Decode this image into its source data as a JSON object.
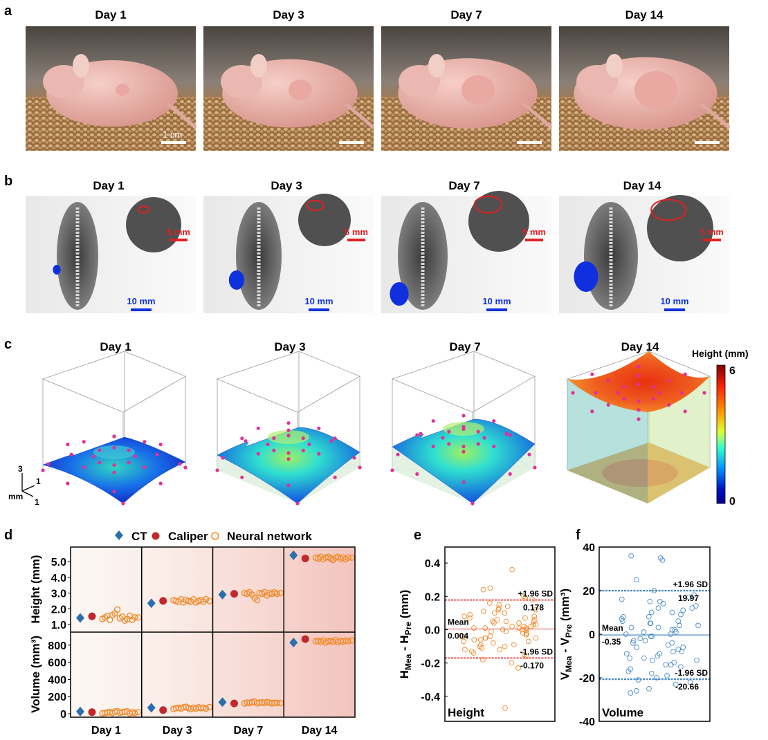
{
  "panel_labels": {
    "a": "a",
    "b": "b",
    "c": "c",
    "d": "d",
    "e": "e",
    "f": "f"
  },
  "days": [
    "Day 1",
    "Day 3",
    "Day 7",
    "Day 14"
  ],
  "panel_a": {
    "scale_bar_label": "1 cm"
  },
  "panel_b": {
    "scale_small_label": "5 mm",
    "scale_large_label": "10 mm",
    "colors": {
      "tumor_outline": "#e02020",
      "tumor_fill": "#1030e0"
    }
  },
  "panel_c": {
    "colorbar_title": "Height (mm)",
    "colorbar_max": "6",
    "colorbar_min": "0",
    "axis_labels": {
      "z": "3",
      "x": "1",
      "y": "1",
      "unit": "mm"
    },
    "colormap": [
      "#7f0000",
      "#ff2000",
      "#ffa000",
      "#e0ff30",
      "#30ffd0",
      "#0090ff",
      "#0010c0",
      "#00008f"
    ],
    "marker_color": "#e0309a"
  },
  "chart_data": [
    {
      "panel": "d",
      "type": "scatter",
      "legend": [
        "CT",
        "Caliper",
        "Neural network"
      ],
      "legend_placement": "top",
      "colors": {
        "CT": "#2a6fad",
        "Caliper": "#c0282c",
        "Neural network": "#f08a2a"
      },
      "categories": [
        "Day 1",
        "Day 3",
        "Day 7",
        "Day 14"
      ],
      "height": {
        "ylabel": "Height (mm)",
        "yticks": [
          "1.0",
          "2.0",
          "3.0",
          "4.0",
          "5.0"
        ],
        "ylim": [
          0.5,
          5.9
        ],
        "CT": [
          1.42,
          2.35,
          2.9,
          5.4
        ],
        "Caliper": [
          1.52,
          2.5,
          2.95,
          5.2
        ],
        "Neural network": [
          [
            1.35,
            1.45,
            1.55,
            1.3,
            1.6,
            1.7,
            1.95,
            1.4,
            1.5,
            1.25,
            1.35,
            1.55,
            1.3,
            1.45,
            1.45
          ],
          [
            2.55,
            2.5,
            2.45,
            2.6,
            2.4,
            2.55,
            2.5,
            2.45,
            2.6,
            2.4,
            2.5,
            2.55,
            2.45,
            2.6,
            2.5
          ],
          [
            3.0,
            2.95,
            3.05,
            2.9,
            2.7,
            2.55,
            3.0,
            2.95,
            3.05,
            2.85,
            3.0,
            2.95,
            3.05,
            2.95,
            3.0
          ],
          [
            5.25,
            5.2,
            5.3,
            5.15,
            5.25,
            5.3,
            5.2,
            5.1,
            5.25,
            5.3,
            5.2,
            5.25,
            5.15,
            5.25,
            5.25
          ]
        ]
      },
      "volume": {
        "ylabel": "Volume (mm³)",
        "yticks": [
          "0",
          "200",
          "400",
          "600",
          "800"
        ],
        "ylim": [
          -40,
          950
        ],
        "CT": [
          25,
          70,
          135,
          830
        ],
        "Caliper": [
          18,
          42,
          120,
          870
        ],
        "Neural network": [
          [
            5,
            10,
            15,
            20,
            8,
            25,
            30,
            12,
            18,
            22,
            28,
            5,
            15,
            10,
            18
          ],
          [
            55,
            65,
            70,
            60,
            75,
            80,
            65,
            55,
            70,
            60,
            75,
            65,
            70,
            60,
            78
          ],
          [
            120,
            130,
            125,
            135,
            140,
            120,
            128,
            132,
            125,
            138,
            130,
            122,
            128,
            125,
            125
          ],
          [
            845,
            850,
            840,
            855,
            830,
            845,
            850,
            840,
            860,
            835,
            848,
            842,
            852,
            845,
            855
          ]
        ]
      }
    },
    {
      "panel": "e",
      "type": "scatter",
      "title": "Height",
      "ylabel": "H_Mea - H_Pre (mm)",
      "yticks": [
        "0.4",
        "0.2",
        "0.0",
        "-0.2",
        "-0.4"
      ],
      "ylim": [
        -0.55,
        0.48
      ],
      "color": "#f08a2a",
      "lines": [
        {
          "label": "+1.96 SD",
          "value_label": "0.178",
          "value": 0.178
        },
        {
          "label": "Mean",
          "value_label": "0.004",
          "value": 0.004
        },
        {
          "label": "-1.96 SD",
          "value_label": "-0.170",
          "value": -0.17
        }
      ],
      "line_color": "#f07070",
      "differences": [
        0.36,
        -0.47,
        0.25,
        0.24,
        -0.23,
        -0.2,
        0.2,
        0.19,
        0.18,
        0.15,
        0.13,
        0.12,
        0.1,
        0.1,
        0.08,
        0.07,
        0.06,
        0.05,
        0.05,
        0.04,
        0.03,
        0.02,
        0.02,
        0.01,
        0.01,
        0.0,
        0.0,
        -0.01,
        -0.02,
        -0.02,
        -0.03,
        -0.04,
        -0.05,
        -0.05,
        -0.06,
        -0.07,
        -0.08,
        -0.09,
        -0.1,
        -0.11,
        -0.12,
        -0.13,
        -0.15,
        -0.16,
        -0.18,
        0.09,
        -0.03,
        0.04,
        0.11,
        -0.07,
        0.14,
        -0.12,
        0.01,
        0.06,
        -0.09,
        0.16,
        -0.14,
        0.03,
        -0.05,
        0.08,
        0.0,
        -0.01,
        0.12,
        -0.1,
        0.07,
        0.02,
        -0.04,
        0.05,
        -0.06,
        0.01
      ]
    },
    {
      "panel": "f",
      "type": "scatter",
      "title": "Volume",
      "ylabel": "V_Mea - V_Pre (mm³)",
      "yticks": [
        "40",
        "20",
        "0",
        "-20",
        "-40"
      ],
      "ylim": [
        -40,
        40
      ],
      "color": "#4a8cc8",
      "lines": [
        {
          "label": "+1.96 SD",
          "value_label": "19.97",
          "value": 19.97
        },
        {
          "label": "Mean",
          "value_label": "-0.35",
          "value": -0.35
        },
        {
          "label": "-1.96 SD",
          "value_label": "-20.66",
          "value": -20.66
        }
      ],
      "line_color": "#4a8cc8",
      "differences": [
        36,
        35,
        34,
        25,
        20,
        18,
        17,
        16,
        15,
        14,
        12,
        11,
        10,
        9,
        8,
        7,
        6,
        5,
        4,
        3,
        2,
        1,
        0,
        -1,
        -2,
        -3,
        -4,
        -5,
        -6,
        -7,
        -8,
        -9,
        -10,
        -11,
        -12,
        -13,
        -14,
        -15,
        -16,
        -17,
        -18,
        -19,
        -20,
        -21,
        -22,
        -23,
        -25,
        -27,
        -26,
        13,
        -11,
        3,
        8,
        -6,
        1,
        -3,
        5,
        -9,
        15,
        -14,
        0,
        2,
        -1,
        10,
        -8,
        6,
        -4,
        12,
        -12,
        4
      ]
    }
  ]
}
